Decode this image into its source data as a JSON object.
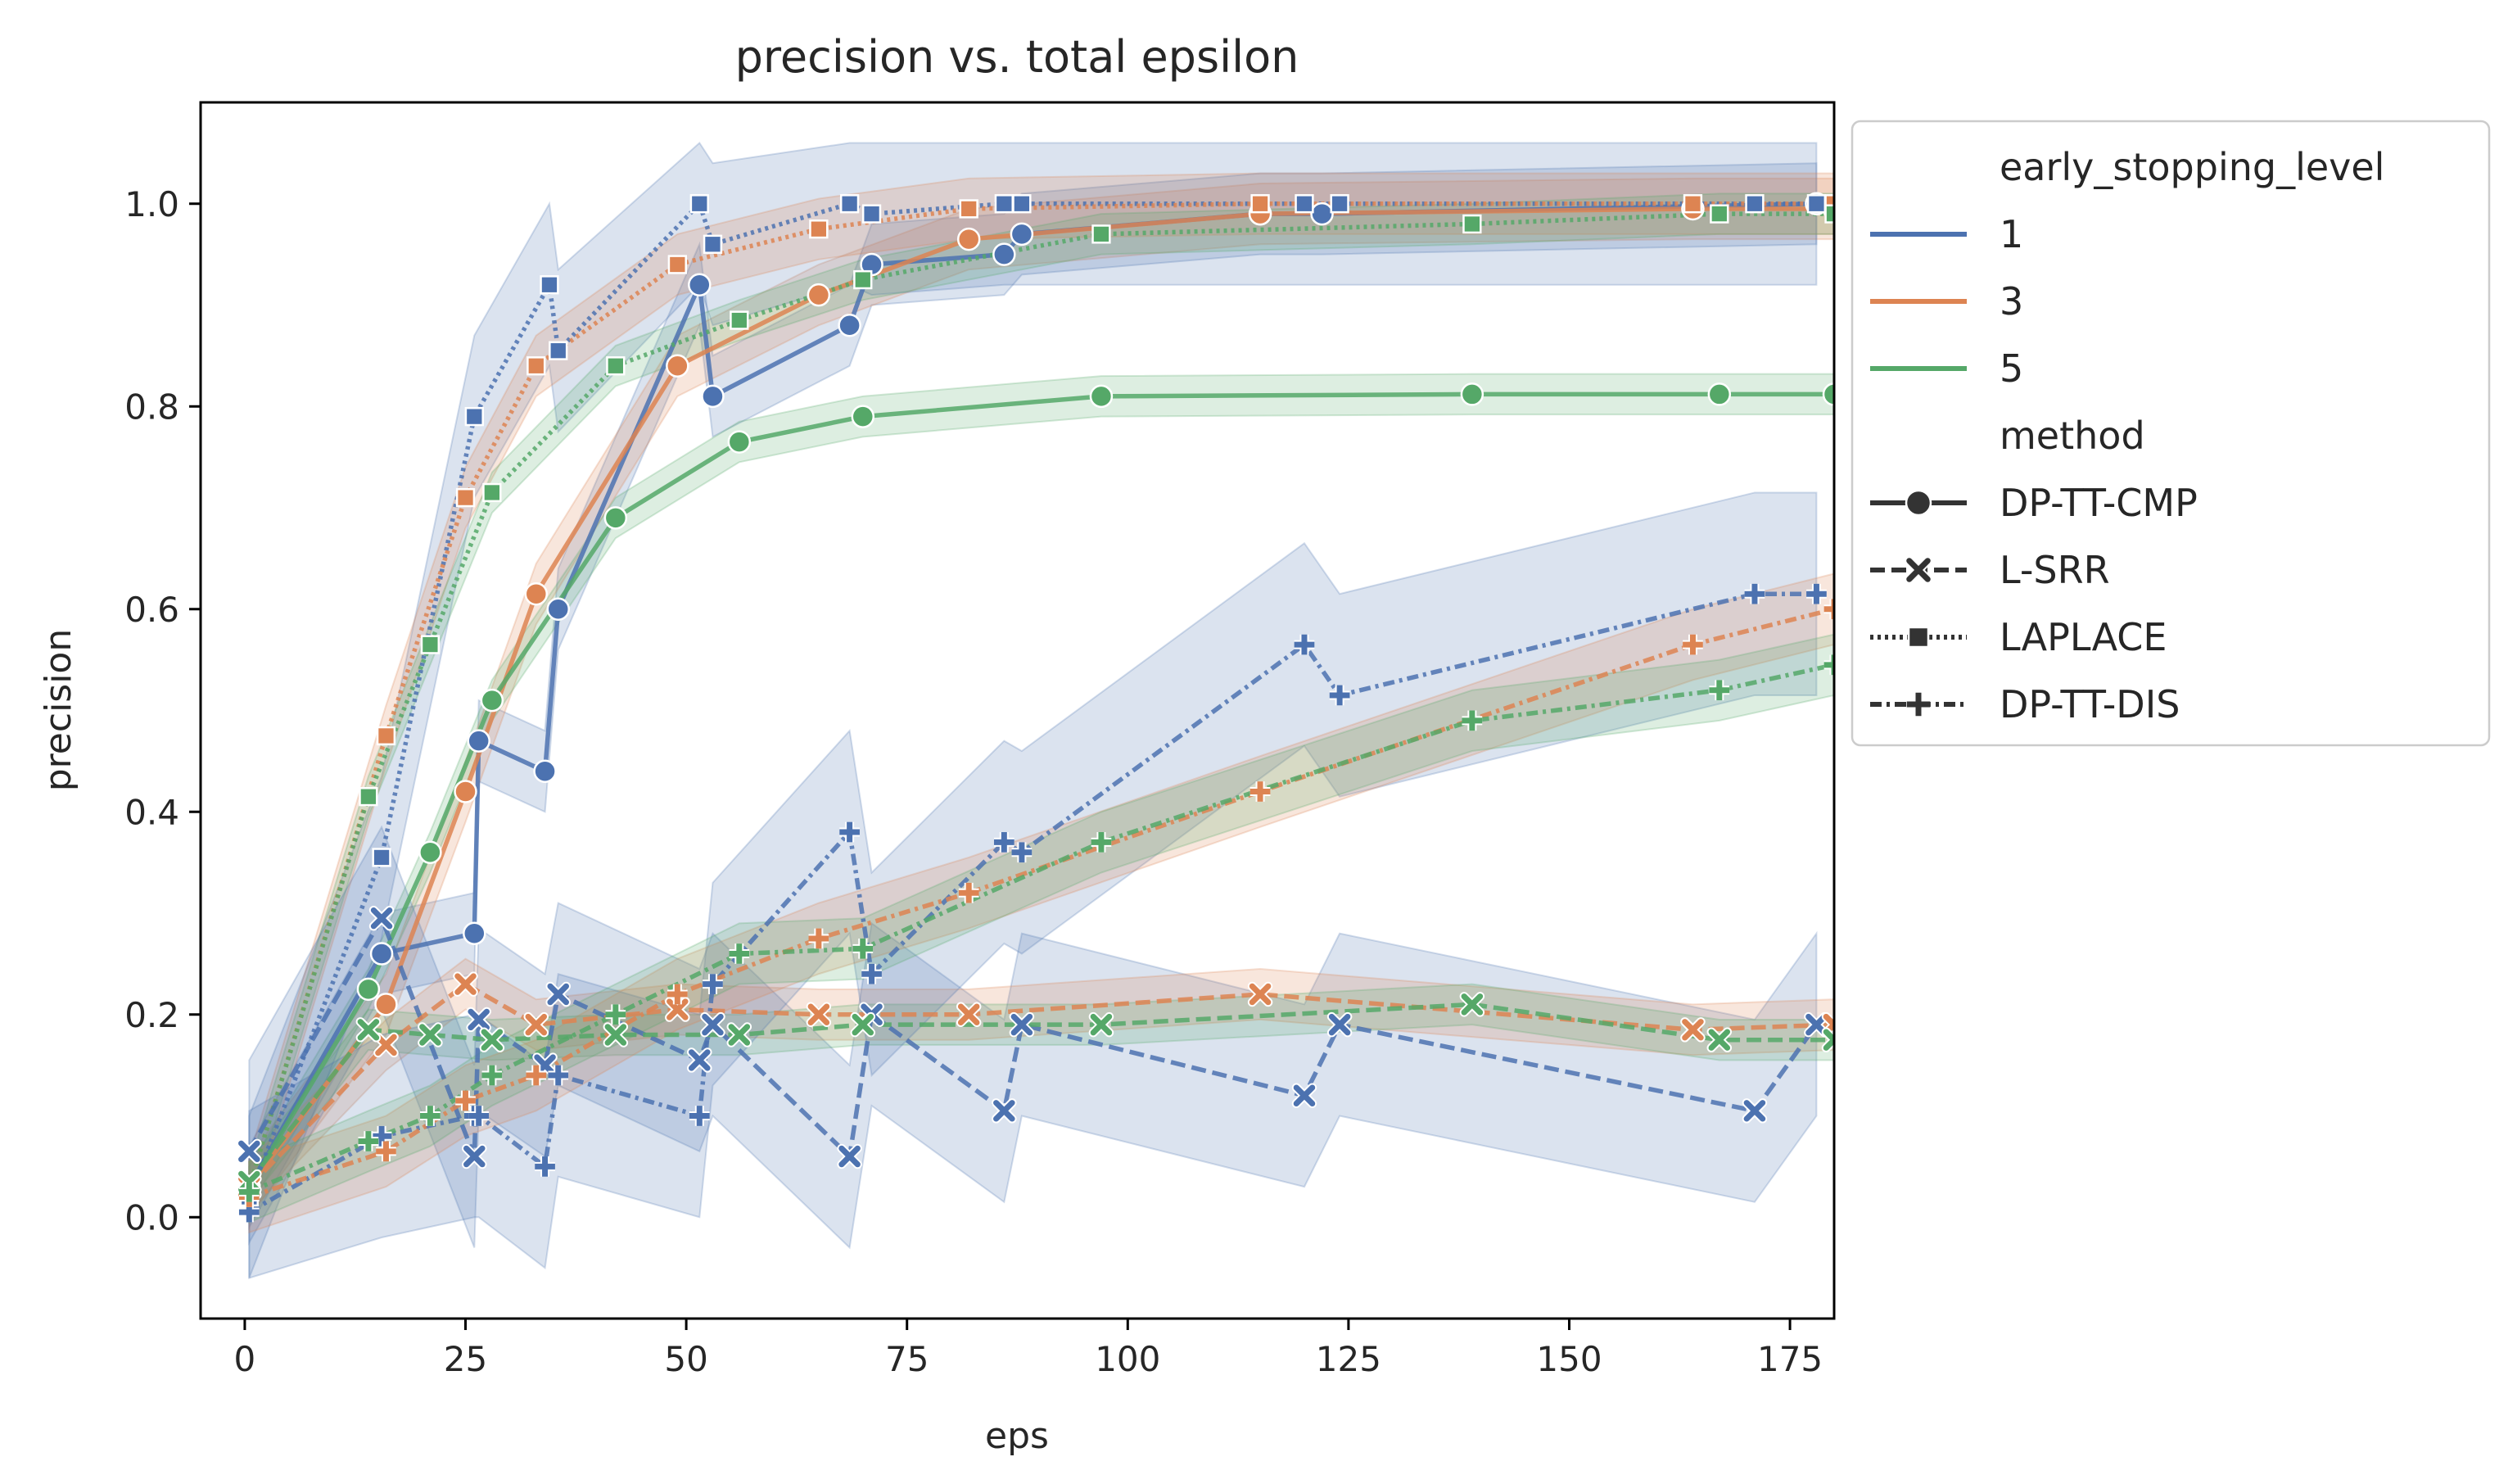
{
  "chart_data": {
    "type": "line",
    "title": "precision vs. total epsilon",
    "xlabel": "eps",
    "ylabel": "precision",
    "xlim": [
      -5,
      180
    ],
    "ylim": [
      -0.1,
      1.1
    ],
    "xticks": [
      0,
      25,
      50,
      75,
      100,
      125,
      150,
      175
    ],
    "yticks": [
      0.0,
      0.2,
      0.4,
      0.6,
      0.8,
      1.0
    ],
    "grid": false,
    "legend": {
      "placement": "outside-right",
      "hue_title": "early_stopping_level",
      "style_title": "method",
      "hue_entries": [
        {
          "label": "1",
          "color": "#4c72b0"
        },
        {
          "label": "3",
          "color": "#dd8452"
        },
        {
          "label": "5",
          "color": "#55a868"
        }
      ],
      "style_entries": [
        {
          "label": "DP-TT-CMP",
          "dash": "",
          "marker": "circle"
        },
        {
          "label": "L-SRR",
          "dash": "18,8",
          "marker": "x"
        },
        {
          "label": "LAPLACE",
          "dash": "4,5",
          "marker": "square"
        },
        {
          "label": "DP-TT-DIS",
          "dash": "14,6,4,6",
          "marker": "plus"
        }
      ]
    },
    "series": [
      {
        "name": "1",
        "method": "DP-TT-CMP",
        "color": "#4c72b0",
        "dash": "",
        "marker": "circle",
        "band": 0.04,
        "x": [
          0.5,
          15.5,
          26,
          26.5,
          34,
          35.5,
          51.5,
          53,
          68.5,
          71,
          86,
          88,
          115,
          122,
          178
        ],
        "y": [
          0.03,
          0.26,
          0.28,
          0.47,
          0.44,
          0.6,
          0.92,
          0.81,
          0.88,
          0.94,
          0.95,
          0.97,
          0.99,
          0.99,
          1.0
        ]
      },
      {
        "name": "3",
        "method": "DP-TT-CMP",
        "color": "#dd8452",
        "dash": "",
        "marker": "circle",
        "band": 0.03,
        "x": [
          0.5,
          16,
          25,
          33,
          49,
          65,
          82,
          115,
          164,
          180
        ],
        "y": [
          0.03,
          0.21,
          0.42,
          0.615,
          0.84,
          0.91,
          0.965,
          0.99,
          0.995,
          0.995
        ]
      },
      {
        "name": "5",
        "method": "DP-TT-CMP",
        "color": "#55a868",
        "dash": "",
        "marker": "circle",
        "band": 0.02,
        "x": [
          0.5,
          14,
          21,
          28,
          42,
          56,
          70,
          97,
          139,
          167,
          180
        ],
        "y": [
          0.03,
          0.225,
          0.36,
          0.51,
          0.69,
          0.765,
          0.79,
          0.81,
          0.812,
          0.812,
          0.812
        ]
      },
      {
        "name": "1",
        "method": "LAPLACE",
        "color": "#4c72b0",
        "dash": "4,5",
        "marker": "square",
        "band": 0.08,
        "x": [
          0.5,
          15.5,
          26,
          34.5,
          35.5,
          51.5,
          53,
          68.5,
          71,
          86,
          88,
          120,
          124,
          171,
          178
        ],
        "y": [
          0.02,
          0.355,
          0.79,
          0.92,
          0.855,
          1.0,
          0.96,
          1.0,
          0.99,
          1.0,
          1.0,
          1.0,
          1.0,
          1.0,
          1.0
        ]
      },
      {
        "name": "3",
        "method": "LAPLACE",
        "color": "#dd8452",
        "dash": "4,5",
        "marker": "square",
        "band": 0.03,
        "x": [
          0.5,
          16,
          25,
          33,
          49,
          65,
          82,
          115,
          164,
          180
        ],
        "y": [
          0.03,
          0.475,
          0.71,
          0.84,
          0.94,
          0.975,
          0.995,
          1.0,
          1.0,
          1.0
        ]
      },
      {
        "name": "5",
        "method": "LAPLACE",
        "color": "#55a868",
        "dash": "4,5",
        "marker": "square",
        "band": 0.02,
        "x": [
          0.5,
          14,
          21,
          28,
          42,
          56,
          70,
          97,
          139,
          167,
          180
        ],
        "y": [
          0.03,
          0.415,
          0.565,
          0.715,
          0.84,
          0.885,
          0.925,
          0.97,
          0.98,
          0.99,
          0.99
        ]
      },
      {
        "name": "1",
        "method": "L-SRR",
        "color": "#4c72b0",
        "dash": "18,8",
        "marker": "x",
        "band": 0.09,
        "x": [
          0.5,
          15.5,
          26,
          26.5,
          34,
          35.5,
          51.5,
          53,
          68.5,
          71,
          86,
          88,
          120,
          124,
          171,
          178
        ],
        "y": [
          0.065,
          0.295,
          0.06,
          0.195,
          0.15,
          0.22,
          0.155,
          0.19,
          0.06,
          0.2,
          0.105,
          0.19,
          0.12,
          0.19,
          0.105,
          0.19
        ]
      },
      {
        "name": "3",
        "method": "L-SRR",
        "color": "#dd8452",
        "dash": "18,8",
        "marker": "x",
        "band": 0.025,
        "x": [
          0.5,
          16,
          25,
          33,
          49,
          65,
          82,
          115,
          164,
          180
        ],
        "y": [
          0.03,
          0.17,
          0.23,
          0.19,
          0.205,
          0.2,
          0.2,
          0.22,
          0.185,
          0.19
        ]
      },
      {
        "name": "5",
        "method": "L-SRR",
        "color": "#55a868",
        "dash": "18,8",
        "marker": "x",
        "band": 0.02,
        "x": [
          0.5,
          14,
          21,
          28,
          42,
          56,
          70,
          97,
          139,
          167,
          180
        ],
        "y": [
          0.035,
          0.185,
          0.18,
          0.175,
          0.18,
          0.18,
          0.19,
          0.19,
          0.21,
          0.175,
          0.175
        ]
      },
      {
        "name": "1",
        "method": "DP-TT-DIS",
        "color": "#4c72b0",
        "dash": "14,6,4,6",
        "marker": "plus",
        "band": 0.1,
        "x": [
          0.5,
          15.5,
          26,
          26.5,
          34,
          35.5,
          51.5,
          53,
          68.5,
          71,
          86,
          88,
          120,
          124,
          171,
          178
        ],
        "y": [
          0.005,
          0.08,
          0.1,
          0.1,
          0.05,
          0.14,
          0.1,
          0.23,
          0.38,
          0.24,
          0.37,
          0.36,
          0.565,
          0.515,
          0.615,
          0.615
        ]
      },
      {
        "name": "3",
        "method": "DP-TT-DIS",
        "color": "#dd8452",
        "dash": "14,6,4,6",
        "marker": "plus",
        "band": 0.035,
        "x": [
          0.5,
          16,
          25,
          33,
          49,
          65,
          82,
          115,
          164,
          180
        ],
        "y": [
          0.02,
          0.065,
          0.115,
          0.14,
          0.22,
          0.275,
          0.32,
          0.42,
          0.565,
          0.6
        ]
      },
      {
        "name": "5",
        "method": "DP-TT-DIS",
        "color": "#55a868",
        "dash": "14,6,4,6",
        "marker": "plus",
        "band": 0.03,
        "x": [
          0.5,
          14,
          21,
          28,
          42,
          56,
          70,
          97,
          139,
          167,
          180
        ],
        "y": [
          0.025,
          0.075,
          0.1,
          0.14,
          0.2,
          0.26,
          0.265,
          0.37,
          0.49,
          0.52,
          0.545
        ]
      }
    ]
  }
}
